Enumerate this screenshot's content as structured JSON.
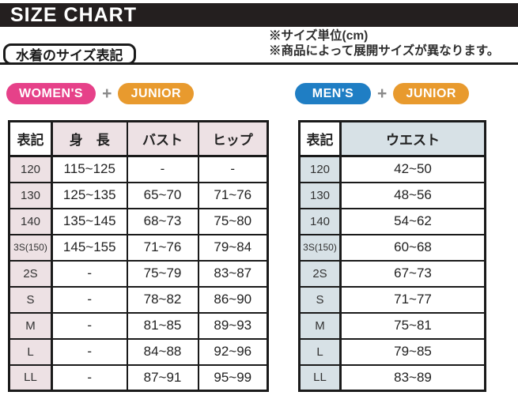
{
  "header": {
    "title": "SIZE CHART"
  },
  "notes": {
    "line1": "※サイズ単位(cm)",
    "line2": "※商品によって展開サイズが異なります。"
  },
  "section_label": "水着のサイズ表記",
  "badges": {
    "plus": "+",
    "womens": {
      "label": "WOMEN'S",
      "color": "#e64189"
    },
    "junior": {
      "label": "JUNIOR",
      "color": "#e89a2e"
    },
    "mens": {
      "label": "MEN'S",
      "color": "#1f7ec4"
    }
  },
  "womens_table": {
    "tint": "#ede1e4",
    "headers": [
      "表記",
      "身　長",
      "バスト",
      "ヒップ"
    ],
    "rows": [
      [
        "120",
        "115~125",
        "-",
        "-"
      ],
      [
        "130",
        "125~135",
        "65~70",
        "71~76"
      ],
      [
        "140",
        "135~145",
        "68~73",
        "75~80"
      ],
      [
        "3S(150)",
        "145~155",
        "71~76",
        "79~84"
      ],
      [
        "2S",
        "-",
        "75~79",
        "83~87"
      ],
      [
        "S",
        "-",
        "78~82",
        "86~90"
      ],
      [
        "M",
        "-",
        "81~85",
        "89~93"
      ],
      [
        "L",
        "-",
        "84~88",
        "92~96"
      ],
      [
        "LL",
        "-",
        "87~91",
        "95~99"
      ]
    ]
  },
  "mens_table": {
    "tint": "#d7e1e6",
    "headers": [
      "表記",
      "ウエスト"
    ],
    "rows": [
      [
        "120",
        "42~50"
      ],
      [
        "130",
        "48~56"
      ],
      [
        "140",
        "54~62"
      ],
      [
        "3S(150)",
        "60~68"
      ],
      [
        "2S",
        "67~73"
      ],
      [
        "S",
        "71~77"
      ],
      [
        "M",
        "75~81"
      ],
      [
        "L",
        "79~85"
      ],
      [
        "LL",
        "83~89"
      ]
    ]
  }
}
